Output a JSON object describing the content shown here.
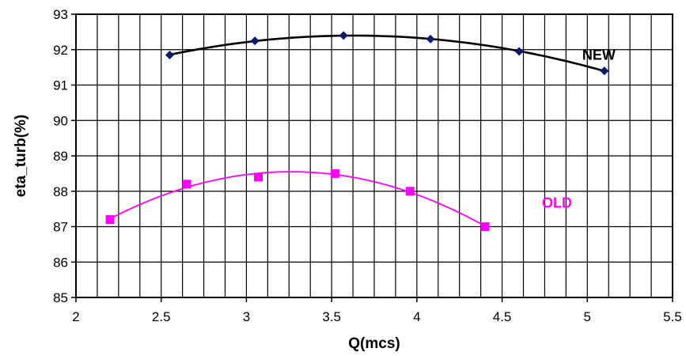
{
  "chart_data": {
    "type": "line",
    "title": "",
    "xlabel": "Q(mcs)",
    "ylabel": "eta_turb(%)",
    "xlim": [
      2,
      5.5
    ],
    "ylim": [
      85,
      93
    ],
    "xticks": [
      2,
      2.5,
      3,
      3.5,
      4,
      4.5,
      5,
      5.5
    ],
    "xtick_labels": [
      "2",
      "2.5",
      "3",
      "3.5",
      "4",
      "4.5",
      "5",
      "5.5"
    ],
    "yticks": [
      85,
      86,
      87,
      88,
      89,
      90,
      91,
      92,
      93
    ],
    "ytick_labels": [
      "85",
      "86",
      "87",
      "88",
      "89",
      "90",
      "91",
      "92",
      "93"
    ],
    "grid": true,
    "x_minor_grid_step": 0.125,
    "series": [
      {
        "name": "NEW",
        "color": "#000000",
        "marker_color": "#0b1a6a",
        "marker": "diamond",
        "x": [
          2.55,
          3.05,
          3.57,
          4.08,
          4.6,
          5.1
        ],
        "y": [
          91.85,
          92.25,
          92.4,
          92.3,
          91.95,
          91.4
        ]
      },
      {
        "name": "OLD",
        "color": "#ff00ff",
        "marker_color": "#ff00ff",
        "marker": "square",
        "x": [
          2.2,
          2.65,
          3.07,
          3.52,
          3.96,
          4.4
        ],
        "y": [
          87.2,
          88.2,
          88.4,
          88.5,
          88.0,
          87.0
        ]
      }
    ]
  }
}
